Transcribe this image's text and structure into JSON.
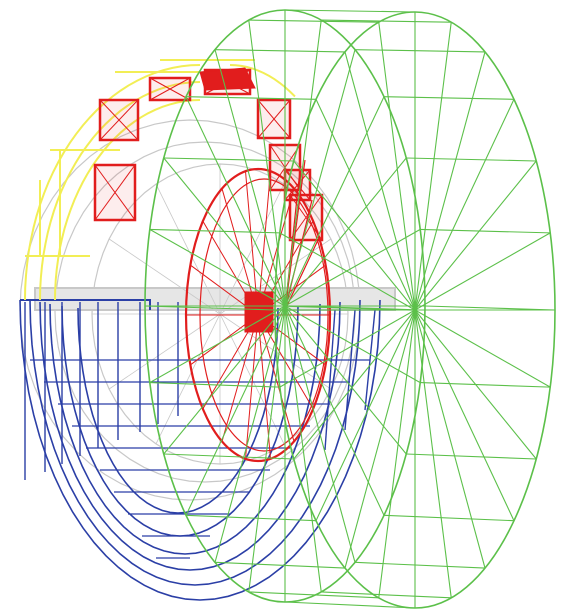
{
  "figure": {
    "background": "#ffffff",
    "components": [
      {
        "key": "support",
        "color": "#c8c8c8"
      },
      {
        "key": "lower-half",
        "color": "#2b3fa6"
      },
      {
        "key": "upper-frame",
        "color": "#f2ee55"
      },
      {
        "key": "upper-panels",
        "color": "#e11d1d"
      },
      {
        "key": "inner-wheel",
        "color": "#e11d1d"
      },
      {
        "key": "outer-drum",
        "color": "#5cc04a"
      }
    ]
  }
}
